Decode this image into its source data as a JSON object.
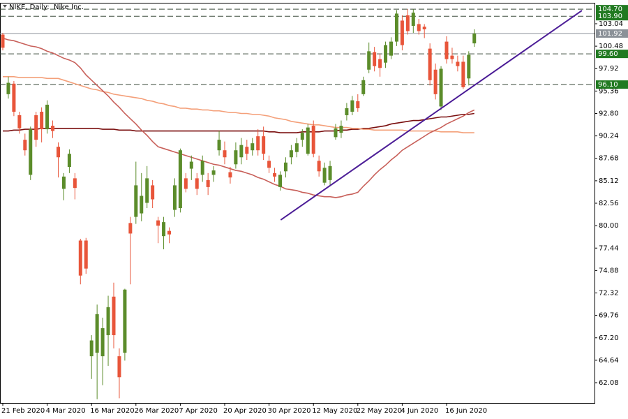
{
  "chart_data": {
    "type": "candlestick",
    "title": "NIKE, Daily:  Nike Inc.",
    "categories": [
      "21 Feb 2020",
      null,
      null,
      null,
      null,
      null,
      null,
      null,
      "4 Mar 2020",
      null,
      null,
      null,
      null,
      null,
      null,
      null,
      "16 Mar 2020",
      null,
      null,
      null,
      null,
      null,
      null,
      null,
      "26 Mar 2020",
      null,
      null,
      null,
      null,
      null,
      null,
      null,
      "7 Apr 2020",
      null,
      null,
      null,
      null,
      null,
      null,
      null,
      "20 Apr 2020",
      null,
      null,
      null,
      null,
      null,
      null,
      null,
      "30 Apr 2020",
      null,
      null,
      null,
      null,
      null,
      null,
      null,
      "12 May 2020",
      null,
      null,
      null,
      null,
      null,
      null,
      null,
      "22 May 2020",
      null,
      null,
      null,
      null,
      null,
      null,
      null,
      "4 Jun 2020",
      null,
      null,
      null,
      null,
      null,
      null,
      null,
      "16 Jun 2020",
      null,
      null,
      null,
      null,
      null
    ],
    "open": [
      101.8,
      95.0,
      96.2,
      92.6,
      89.8,
      85.8,
      92.6,
      93.0,
      91.0,
      91.4,
      89.0,
      84.2,
      86.7,
      85.4,
      78.3,
      78.3,
      65.1,
      65.5,
      65.1,
      67.5,
      71.9,
      65.1,
      65.5,
      80.3,
      81.0,
      81.4,
      82.6,
      84.6,
      80.6,
      78.8,
      79.4,
      81.8,
      82.0,
      85.4,
      86.5,
      85.4,
      85.8,
      85.2,
      85.8,
      88.6,
      88.6,
      86.1,
      87.0,
      87.8,
      89.0,
      88.6,
      90.2,
      90.2,
      87.4,
      86.0,
      84.4,
      86.2,
      87.8,
      88.4,
      89.8,
      88.2,
      91.4,
      87.4,
      84.9,
      85.2,
      90.1,
      90.6,
      92.6,
      93.0,
      94.2,
      95.0,
      97.8,
      99.8,
      99.0,
      98.6,
      99.4,
      101.0,
      103.4,
      104.0,
      102.8,
      103.0,
      102.7,
      100.2,
      97.8,
      93.6,
      101.0,
      99.4,
      98.7,
      98.7,
      96.8,
      100.8
    ],
    "high": [
      102.0,
      97.0,
      96.5,
      93.0,
      90.5,
      91.3,
      93.0,
      93.5,
      94.3,
      92.0,
      89.5,
      86.0,
      88.7,
      86.0,
      78.5,
      78.6,
      67.5,
      71.0,
      69.5,
      72.0,
      73.5,
      66.0,
      72.8,
      81.0,
      87.3,
      86.0,
      86.8,
      85.2,
      81.0,
      81.0,
      79.8,
      85.4,
      88.8,
      86.0,
      88.0,
      86.0,
      88.0,
      86.0,
      86.8,
      90.8,
      89.6,
      86.7,
      89.5,
      90.0,
      89.8,
      90.0,
      91.0,
      91.3,
      88.0,
      86.6,
      86.2,
      87.8,
      89.2,
      90.0,
      91.0,
      91.6,
      92.0,
      88.0,
      87.2,
      87.4,
      91.6,
      92.0,
      94.0,
      94.8,
      95.0,
      97.0,
      100.9,
      100.4,
      99.6,
      101.0,
      101.5,
      104.6,
      104.0,
      104.7,
      104.7,
      103.6,
      103.0,
      100.8,
      98.5,
      98.2,
      101.6,
      100.3,
      99.4,
      99.4,
      99.9,
      102.4
    ],
    "low": [
      100.0,
      94.5,
      92.5,
      90.5,
      88.0,
      85.2,
      89.0,
      89.5,
      90.5,
      90.0,
      85.5,
      82.9,
      86.0,
      83.0,
      73.3,
      74.5,
      62.5,
      60.2,
      61.8,
      64.0,
      66.0,
      60.3,
      64.6,
      73.3,
      80.2,
      80.5,
      82.0,
      82.0,
      78.0,
      77.3,
      78.0,
      81.0,
      81.5,
      83.8,
      85.2,
      83.5,
      85.0,
      83.5,
      85.0,
      88.0,
      87.0,
      84.8,
      86.5,
      87.0,
      87.5,
      88.0,
      88.0,
      87.5,
      86.0,
      85.0,
      84.0,
      85.5,
      87.0,
      87.8,
      89.0,
      88.0,
      87.8,
      85.6,
      84.6,
      84.5,
      89.8,
      90.0,
      92.0,
      92.6,
      93.0,
      94.8,
      97.4,
      97.6,
      97.0,
      98.0,
      99.0,
      100.5,
      100.0,
      101.8,
      102.0,
      101.8,
      101.4,
      96.0,
      94.4,
      93.2,
      98.5,
      98.5,
      97.6,
      95.6,
      96.0,
      100.4
    ],
    "close": [
      100.3,
      96.3,
      93.0,
      91.1,
      88.6,
      91.0,
      89.8,
      91.0,
      93.8,
      90.8,
      87.8,
      85.6,
      88.2,
      84.3,
      74.3,
      75.1,
      66.9,
      69.9,
      68.3,
      70.7,
      67.5,
      62.7,
      72.7,
      79.1,
      84.6,
      83.4,
      85.4,
      83.0,
      80.0,
      80.4,
      79.0,
      84.6,
      88.6,
      84.2,
      87.3,
      84.2,
      87.4,
      84.4,
      86.3,
      89.8,
      87.8,
      85.5,
      88.6,
      89.2,
      88.2,
      89.4,
      88.6,
      88.2,
      86.6,
      85.6,
      85.8,
      87.2,
      88.6,
      89.4,
      90.6,
      91.2,
      88.2,
      86.2,
      86.6,
      86.8,
      91.1,
      91.4,
      93.4,
      94.3,
      93.4,
      96.6,
      99.9,
      98.2,
      98.0,
      100.6,
      101.0,
      104.2,
      100.6,
      102.2,
      104.3,
      102.2,
      102.4,
      96.6,
      95.0,
      97.9,
      99.0,
      99.0,
      98.2,
      95.8,
      99.5,
      101.92
    ],
    "bull_color": "#5b8c2a",
    "bear_color": "#e8553a",
    "series": [
      {
        "color": "#7a0f0f",
        "values": [
          90.8,
          90.8,
          90.9,
          90.9,
          91.0,
          91.0,
          91.0,
          91.1,
          91.1,
          91.1,
          91.1,
          91.1,
          91.1,
          91.1,
          91.1,
          91.1,
          91.1,
          91.1,
          91.0,
          91.0,
          91.0,
          90.9,
          90.9,
          90.9,
          90.8,
          90.8,
          90.8,
          90.8,
          90.8,
          90.8,
          90.8,
          90.8,
          90.8,
          90.8,
          90.8,
          90.8,
          90.8,
          90.8,
          90.8,
          90.8,
          90.8,
          90.8,
          90.8,
          90.8,
          90.8,
          90.8,
          90.8,
          90.8,
          90.7,
          90.7,
          90.6,
          90.6,
          90.6,
          90.6,
          90.7,
          90.7,
          90.7,
          90.7,
          90.8,
          90.8,
          90.8,
          90.9,
          90.9,
          91.0,
          91.0,
          91.1,
          91.1,
          91.2,
          91.3,
          91.4,
          91.6,
          91.7,
          91.8,
          91.9,
          92.0,
          92.0,
          92.1,
          92.2,
          92.3,
          92.4,
          92.4,
          92.5,
          92.6,
          92.7,
          92.7,
          92.8
        ]
      },
      {
        "color": "#f4a07a",
        "values": [
          97.0,
          97.0,
          97.0,
          96.9,
          96.9,
          96.9,
          96.9,
          96.9,
          96.8,
          96.8,
          96.8,
          96.6,
          96.4,
          96.2,
          96.0,
          95.8,
          95.6,
          95.5,
          95.3,
          95.2,
          95.0,
          94.9,
          94.8,
          94.7,
          94.6,
          94.5,
          94.3,
          94.2,
          94.0,
          93.9,
          93.7,
          93.6,
          93.4,
          93.4,
          93.3,
          93.3,
          93.2,
          93.2,
          93.1,
          93.1,
          93.0,
          92.9,
          92.9,
          92.8,
          92.8,
          92.7,
          92.7,
          92.6,
          92.5,
          92.3,
          92.2,
          92.1,
          91.9,
          91.8,
          91.7,
          91.6,
          91.5,
          91.5,
          91.4,
          91.3,
          91.2,
          91.2,
          91.2,
          91.1,
          91.1,
          91.0,
          91.0,
          90.9,
          90.9,
          90.9,
          90.9,
          90.9,
          90.9,
          90.8,
          90.8,
          90.8,
          90.8,
          90.8,
          90.8,
          90.7,
          90.7,
          90.7,
          90.7,
          90.6,
          90.6,
          90.6
        ]
      },
      {
        "color": "#c8605a",
        "values": [
          101.4,
          101.2,
          101.1,
          100.9,
          100.7,
          100.5,
          100.4,
          100.2,
          99.9,
          99.7,
          99.4,
          99.1,
          98.9,
          98.6,
          98.0,
          97.2,
          96.6,
          96.0,
          95.4,
          94.8,
          94.1,
          93.5,
          92.8,
          92.2,
          91.6,
          90.9,
          90.3,
          89.6,
          89.0,
          88.8,
          88.6,
          88.4,
          88.2,
          88.0,
          87.8,
          87.6,
          87.4,
          87.2,
          87.0,
          86.9,
          86.7,
          86.5,
          86.3,
          86.2,
          86.0,
          85.8,
          85.5,
          85.3,
          85.0,
          84.7,
          84.5,
          84.2,
          84.1,
          84.0,
          83.8,
          83.7,
          83.5,
          83.4,
          83.3,
          83.3,
          83.2,
          83.3,
          83.5,
          83.6,
          83.8,
          84.5,
          85.1,
          85.8,
          86.4,
          86.9,
          87.5,
          88.0,
          88.6,
          89.0,
          89.4,
          89.8,
          90.2,
          90.6,
          90.9,
          91.2,
          91.6,
          91.9,
          92.2,
          92.5,
          92.9,
          93.2
        ]
      }
    ],
    "trendline": {
      "x": [
        50.1,
        104.4
      ],
      "values": [
        80.65,
        104.55
      ],
      "color": "#4b1c96"
    },
    "levels": [
      {
        "value": 104.7,
        "label": "104.70"
      },
      {
        "value": 103.9,
        "label": "103.90"
      },
      {
        "value": 99.6,
        "label": "99.60"
      },
      {
        "value": 96.1,
        "label": "96.10"
      }
    ],
    "level_color": "#217a21",
    "current_price": {
      "value": 101.92,
      "label": "101.92"
    },
    "current_color": "#8b9198",
    "ylim": [
      59.77,
      105.35
    ],
    "yticks": [
      {
        "value": 62.08,
        "label": "62.08"
      },
      {
        "value": 64.64,
        "label": "64.64"
      },
      {
        "value": 67.2,
        "label": "67.20"
      },
      {
        "value": 69.76,
        "label": "69.76"
      },
      {
        "value": 72.32,
        "label": "72.32"
      },
      {
        "value": 74.88,
        "label": "74.88"
      },
      {
        "value": 77.44,
        "label": "77.44"
      },
      {
        "value": 80,
        "label": "80.00"
      },
      {
        "value": 82.56,
        "label": "82.56"
      },
      {
        "value": 85.12,
        "label": "85.12"
      },
      {
        "value": 87.68,
        "label": "87.68"
      },
      {
        "value": 90.24,
        "label": "90.24"
      },
      {
        "value": 92.8,
        "label": "92.80"
      },
      {
        "value": 95.36,
        "label": "95.36"
      },
      {
        "value": 97.92,
        "label": "97.92"
      },
      {
        "value": 100.48,
        "label": "100.48"
      },
      {
        "value": 103.04,
        "label": "103.04"
      }
    ]
  }
}
